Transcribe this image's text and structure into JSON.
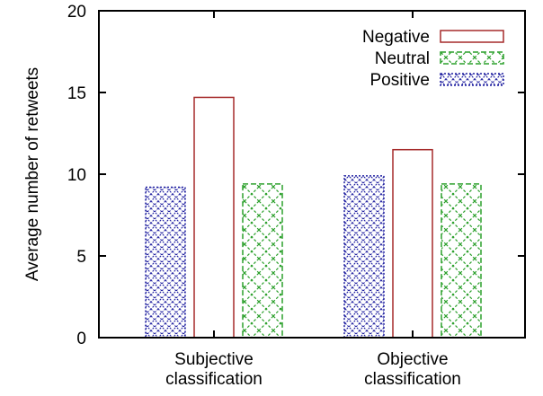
{
  "chart_data": {
    "type": "bar",
    "ylabel": "Average number of retweets",
    "xlabel": "",
    "ylim": [
      0,
      20
    ],
    "yticks": [
      "0",
      "5",
      "10",
      "15",
      "20"
    ],
    "categories": [
      [
        "Subjective",
        "classification"
      ],
      [
        "Objective",
        "classification"
      ]
    ],
    "series_order_in_group": [
      "Positive",
      "Negative",
      "Neutral"
    ],
    "series": [
      {
        "name": "Negative",
        "values": [
          14.7,
          11.5
        ],
        "color": "#a52a2a",
        "pattern": "none"
      },
      {
        "name": "Neutral",
        "values": [
          9.4,
          9.4
        ],
        "color": "#2ca02c",
        "pattern": "crosshatch"
      },
      {
        "name": "Positive",
        "values": [
          9.2,
          9.9
        ],
        "color": "#1f1fa0",
        "pattern": "dense-crosshatch"
      }
    ],
    "legend_position": "top-right",
    "grid": false
  }
}
